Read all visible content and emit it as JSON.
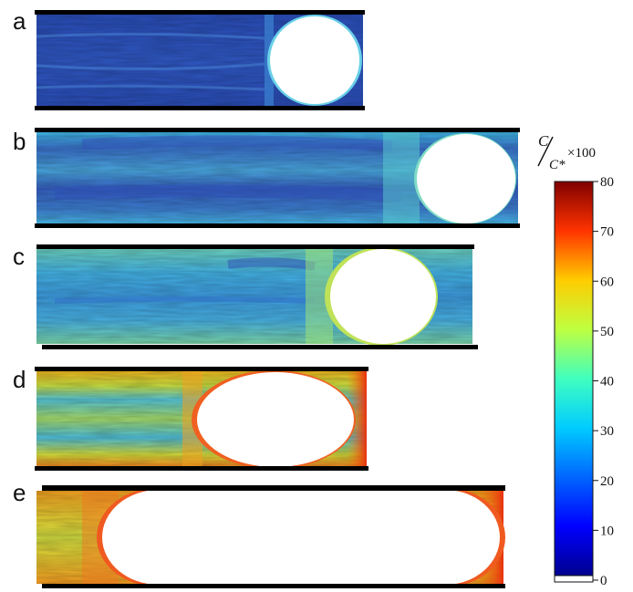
{
  "panels": [
    {
      "letter": "a"
    },
    {
      "letter": "b"
    },
    {
      "letter": "c"
    },
    {
      "letter": "d"
    },
    {
      "letter": "e"
    }
  ],
  "colorbar": {
    "title_c": "C",
    "title_cstar": "C*",
    "title_factor": "×100",
    "range": [
      0,
      80
    ],
    "ticks": [
      "80",
      "70",
      "60",
      "50",
      "40",
      "30",
      "20",
      "10",
      "0"
    ],
    "colormap": "jet"
  },
  "colors": {
    "walls": "#000000",
    "bubble": "#ffffff"
  }
}
